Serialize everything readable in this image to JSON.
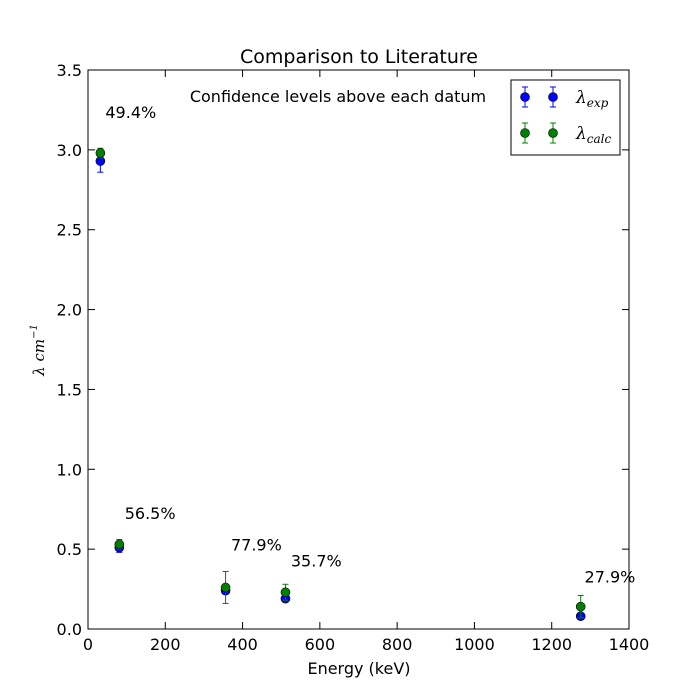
{
  "chart_data": {
    "type": "scatter",
    "title": "Comparison to Literature",
    "xlabel": "Energy (keV)",
    "ylabel": {
      "base": "λ cm",
      "sup": "−1"
    },
    "xlim": [
      0,
      1400
    ],
    "ylim": [
      0,
      3.5
    ],
    "xticks": [
      0,
      200,
      400,
      600,
      800,
      1000,
      1200,
      1400
    ],
    "yticks": [
      0.0,
      0.5,
      1.0,
      1.5,
      2.0,
      2.5,
      3.0,
      3.5
    ],
    "grid": false,
    "legend_position": "top-right",
    "annotation": "Confidence levels above each datum",
    "series": [
      {
        "name": "λ_exp",
        "legend_main": "λ",
        "legend_sub": "exp",
        "color": "#0000ff",
        "x": [
          32,
          81,
          356,
          511,
          1275
        ],
        "y": [
          2.93,
          0.51,
          0.24,
          0.19,
          0.08
        ],
        "err": [
          0.07,
          0.03,
          0.02,
          0.02,
          0.02
        ]
      },
      {
        "name": "λ_calc",
        "legend_main": "λ",
        "legend_sub": "calc",
        "color": "#008000",
        "x": [
          32,
          81,
          356,
          511,
          1275
        ],
        "y": [
          2.98,
          0.53,
          0.26,
          0.23,
          0.14
        ],
        "err": [
          0.03,
          0.03,
          0.1,
          0.05,
          0.07
        ]
      }
    ],
    "labels": [
      {
        "text": "49.4%",
        "x": 45,
        "y": 3.2
      },
      {
        "text": "56.5%",
        "x": 95,
        "y": 0.69
      },
      {
        "text": "77.9%",
        "x": 370,
        "y": 0.49
      },
      {
        "text": "35.7%",
        "x": 525,
        "y": 0.39
      },
      {
        "text": "27.9%",
        "x": 1285,
        "y": 0.29
      }
    ]
  }
}
